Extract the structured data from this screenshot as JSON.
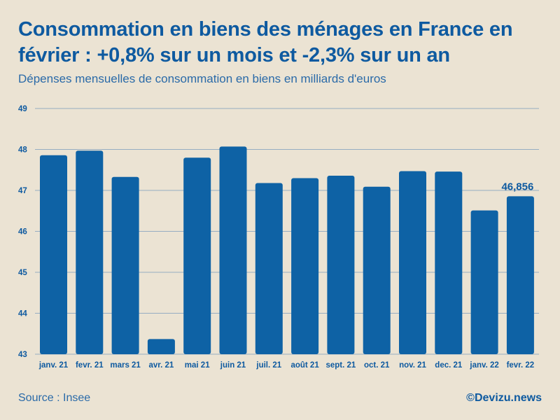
{
  "header": {
    "title": "Consommation en biens des ménages en France en février : +0,8% sur un mois et -2,3% sur un an",
    "subtitle": "Dépenses mensuelles de consommation en biens en milliards d'euros"
  },
  "footer": {
    "source": "Source : Insee",
    "brand": "©Devizu.news"
  },
  "colors": {
    "bar": "#0e62a5",
    "grid": "#7a9bbd",
    "axis_text": "#0e5aa0",
    "background": "#ebe3d3"
  },
  "chart_data": {
    "type": "bar",
    "title": "Consommation en biens des ménages en France en février : +0,8% sur un mois et -2,3% sur un an",
    "subtitle": "Dépenses mensuelles de consommation en biens en milliards d'euros",
    "xlabel": "",
    "ylabel": "",
    "categories": [
      "janv. 21",
      "fevr. 21",
      "mars 21",
      "avr. 21",
      "mai 21",
      "juin 21",
      "juil. 21",
      "août 21",
      "sept. 21",
      "oct. 21",
      "nov. 21",
      "dec. 21",
      "janv. 22",
      "fevr. 22"
    ],
    "values": [
      47.86,
      47.97,
      47.33,
      43.37,
      47.8,
      48.07,
      47.18,
      47.3,
      47.36,
      47.09,
      47.47,
      47.46,
      46.51,
      46.856
    ],
    "ylim": [
      43,
      49
    ],
    "yticks": [
      43,
      44,
      45,
      46,
      47,
      48,
      49
    ],
    "grid": true,
    "annotation": {
      "category": "fevr. 22",
      "text": "46,856"
    }
  }
}
